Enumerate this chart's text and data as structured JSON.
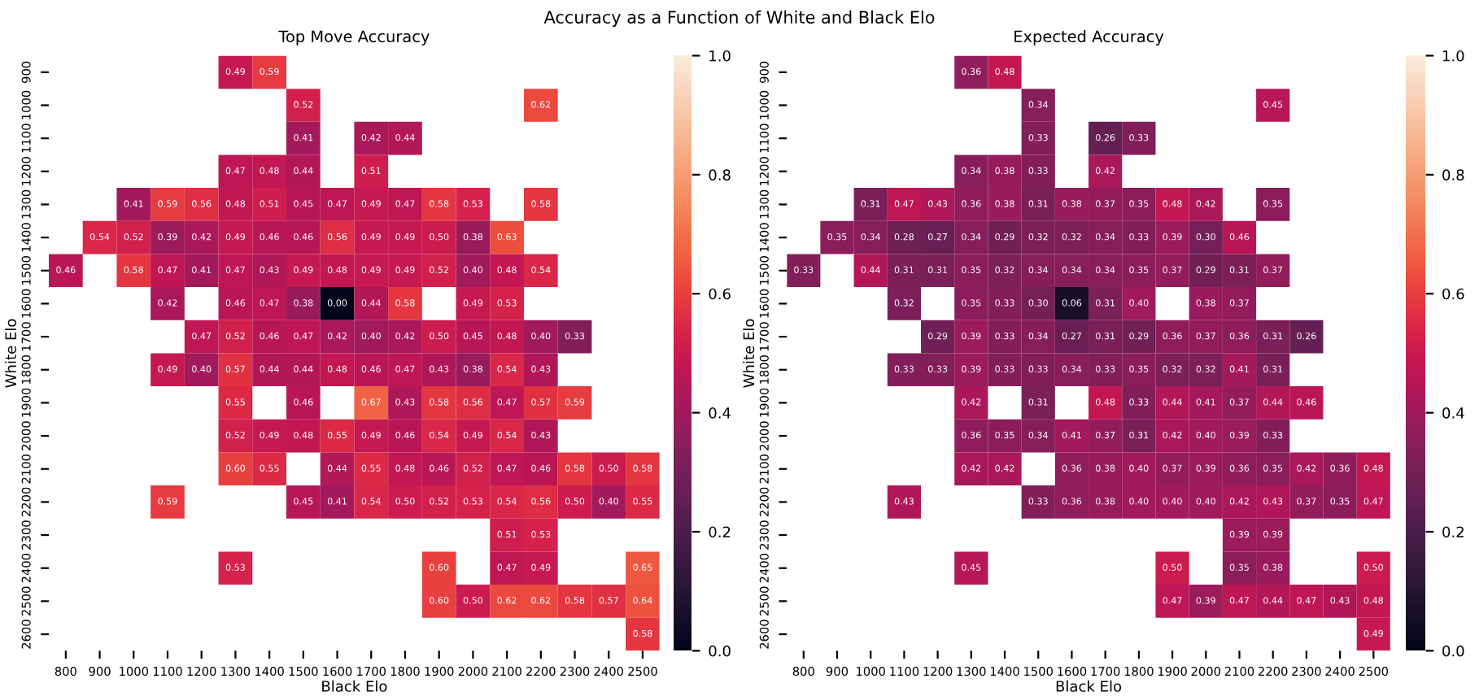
{
  "chart_data": [
    {
      "type": "heatmap",
      "title": "Top Move Accuracy",
      "subtitle": "Accuracy as a Function of White and Black Elo",
      "xlabel": "Black Elo",
      "ylabel": "White Elo",
      "categories": [
        "800",
        "900",
        "1000",
        "1100",
        "1200",
        "1300",
        "1400",
        "1500",
        "1600",
        "1700",
        "1800",
        "1900",
        "2000",
        "2100",
        "2200",
        "2300",
        "2400",
        "2500"
      ],
      "y_categories": [
        "900",
        "1000",
        "1100",
        "1200",
        "1300",
        "1400",
        "1500",
        "1600",
        "1700",
        "1800",
        "1900",
        "2000",
        "2100",
        "2200",
        "2300",
        "2400",
        "2500",
        "2600"
      ],
      "cells": [
        [
          null,
          null,
          null,
          null,
          null,
          0.49,
          0.59,
          null,
          null,
          null,
          null,
          null,
          null,
          null,
          null,
          null,
          null,
          null
        ],
        [
          null,
          null,
          null,
          null,
          null,
          null,
          null,
          0.52,
          null,
          null,
          null,
          null,
          null,
          null,
          0.62,
          null,
          null,
          null
        ],
        [
          null,
          null,
          null,
          null,
          null,
          null,
          null,
          0.41,
          null,
          0.42,
          0.44,
          null,
          null,
          null,
          null,
          null,
          null,
          null
        ],
        [
          null,
          null,
          null,
          null,
          null,
          0.47,
          0.48,
          0.44,
          null,
          0.51,
          null,
          null,
          null,
          null,
          null,
          null,
          null,
          null
        ],
        [
          null,
          null,
          0.41,
          0.59,
          0.56,
          0.48,
          0.51,
          0.45,
          0.47,
          0.49,
          0.47,
          0.58,
          0.53,
          null,
          0.58,
          null,
          null,
          null
        ],
        [
          null,
          0.54,
          0.52,
          0.39,
          0.42,
          0.49,
          0.46,
          0.46,
          0.56,
          0.49,
          0.49,
          0.5,
          0.38,
          0.63,
          null,
          null,
          null,
          null
        ],
        [
          0.46,
          null,
          0.58,
          0.47,
          0.41,
          0.47,
          0.43,
          0.49,
          0.48,
          0.49,
          0.49,
          0.52,
          0.4,
          0.48,
          0.54,
          null,
          null,
          null
        ],
        [
          null,
          null,
          null,
          0.42,
          null,
          0.46,
          0.47,
          0.38,
          0.0,
          0.44,
          0.58,
          null,
          0.49,
          0.53,
          null,
          null,
          null,
          null
        ],
        [
          null,
          null,
          null,
          null,
          0.47,
          0.52,
          0.46,
          0.47,
          0.42,
          0.4,
          0.42,
          0.5,
          0.45,
          0.48,
          0.4,
          0.33,
          null,
          null
        ],
        [
          null,
          null,
          null,
          0.49,
          0.4,
          0.57,
          0.44,
          0.44,
          0.48,
          0.46,
          0.47,
          0.43,
          0.38,
          0.54,
          0.43,
          null,
          null,
          null
        ],
        [
          null,
          null,
          null,
          null,
          null,
          0.55,
          null,
          0.46,
          null,
          0.67,
          0.43,
          0.58,
          0.56,
          0.47,
          0.57,
          0.59,
          null,
          null
        ],
        [
          null,
          null,
          null,
          null,
          null,
          0.52,
          0.49,
          0.48,
          0.55,
          0.49,
          0.46,
          0.54,
          0.49,
          0.54,
          0.43,
          null,
          null,
          null
        ],
        [
          null,
          null,
          null,
          null,
          null,
          0.6,
          0.55,
          null,
          0.44,
          0.55,
          0.48,
          0.46,
          0.52,
          0.47,
          0.46,
          0.58,
          0.5,
          0.58
        ],
        [
          null,
          null,
          null,
          0.59,
          null,
          null,
          null,
          0.45,
          0.41,
          0.54,
          0.5,
          0.52,
          0.53,
          0.54,
          0.56,
          0.5,
          0.4,
          0.55
        ],
        [
          null,
          null,
          null,
          null,
          null,
          null,
          null,
          null,
          null,
          null,
          null,
          null,
          null,
          0.51,
          0.53,
          null,
          null,
          null
        ],
        [
          null,
          null,
          null,
          null,
          null,
          0.53,
          null,
          null,
          null,
          null,
          null,
          0.6,
          null,
          0.47,
          0.49,
          null,
          null,
          0.65
        ],
        [
          null,
          null,
          null,
          null,
          null,
          null,
          null,
          null,
          null,
          null,
          null,
          0.6,
          0.5,
          0.62,
          0.62,
          0.58,
          0.57,
          0.64
        ],
        [
          null,
          null,
          null,
          null,
          null,
          null,
          null,
          null,
          null,
          null,
          null,
          null,
          null,
          null,
          null,
          null,
          null,
          0.58
        ]
      ],
      "cell_labels": [
        [
          null,
          null,
          null,
          null,
          null,
          "0.49",
          "0.59",
          null,
          null,
          null,
          null,
          null,
          null,
          null,
          null,
          null,
          null,
          null
        ],
        [
          null,
          null,
          null,
          null,
          null,
          null,
          null,
          "0.52",
          null,
          null,
          null,
          null,
          null,
          null,
          "0.62",
          null,
          null,
          null
        ],
        [
          null,
          null,
          null,
          null,
          null,
          null,
          null,
          "0.41",
          null,
          "0.42",
          "0.44",
          null,
          null,
          null,
          null,
          null,
          null,
          null
        ],
        [
          null,
          null,
          null,
          null,
          null,
          "0.47",
          "0.48",
          "0.44",
          null,
          "0.51",
          null,
          null,
          null,
          null,
          null,
          null,
          null,
          null
        ],
        [
          null,
          null,
          "0.41",
          "0.59",
          "0.56",
          "0.48",
          "0.51",
          "0.45",
          "0.47",
          "0.49",
          "0.47",
          "0.58",
          "0.53",
          null,
          "0.58",
          null,
          null,
          null
        ],
        [
          null,
          "0.54",
          "0.52",
          "0.39",
          "0.42",
          "0.49",
          "0.46",
          "0.46",
          "0.56",
          "0.49",
          "0.49",
          "0.50",
          "0.38",
          "0.63",
          null,
          null,
          null,
          null
        ],
        [
          "0.46",
          null,
          "0.58",
          "0.47",
          "0.41",
          "0.47",
          "0.43",
          "0.49",
          "0.48",
          "0.49",
          "0.49",
          "0.52",
          "0.40",
          "0.48",
          "0.54",
          null,
          null,
          null
        ],
        [
          null,
          null,
          null,
          "0.42",
          null,
          "0.46",
          "0.47",
          "0.38",
          "0.00",
          "0.44",
          "0.58",
          null,
          "0.49",
          "0.53",
          null,
          null,
          null,
          null
        ],
        [
          null,
          null,
          null,
          null,
          "0.47",
          "0.52",
          "0.46",
          "0.47",
          "0.42",
          "0.40",
          "0.42",
          "0.50",
          "0.45",
          "0.48",
          "0.40",
          "0.33",
          null,
          null
        ],
        [
          null,
          null,
          null,
          "0.49",
          "0.40",
          "0.57",
          "0.44",
          "0.44",
          "0.48",
          "0.46",
          "0.47",
          "0.43",
          "0.38",
          "0.54",
          "0.43",
          null,
          null,
          null
        ],
        [
          null,
          null,
          null,
          null,
          null,
          "0.55",
          null,
          "0.46",
          null,
          "0.67",
          "0.43",
          "0.58",
          "0.56",
          "0.47",
          "0.57",
          "0.59",
          null,
          null
        ],
        [
          null,
          null,
          null,
          null,
          null,
          "0.52",
          "0.49",
          "0.48",
          "0.55",
          "0.49",
          "0.46",
          "0.54",
          "0.49",
          "0.54",
          "0.43",
          null,
          null,
          null
        ],
        [
          null,
          null,
          null,
          null,
          null,
          "0.60",
          "0.55",
          null,
          "0.44",
          "0.55",
          "0.48",
          "0.46",
          "0.52",
          "0.47",
          "0.46",
          "0.58",
          "0.50",
          "0.58"
        ],
        [
          null,
          null,
          null,
          "0.59",
          null,
          null,
          null,
          "0.45",
          "0.41",
          "0.54",
          "0.50",
          "0.52",
          "0.53",
          "0.54",
          "0.56",
          "0.50",
          "0.40",
          "0.55"
        ],
        [
          null,
          null,
          null,
          null,
          null,
          null,
          null,
          null,
          null,
          null,
          null,
          null,
          null,
          "0.51",
          "0.53",
          null,
          null,
          null
        ],
        [
          null,
          null,
          null,
          null,
          null,
          "0.53",
          null,
          null,
          null,
          null,
          null,
          "0.60",
          null,
          "0.47",
          "0.49",
          null,
          null,
          "0.65"
        ],
        [
          null,
          null,
          null,
          null,
          null,
          null,
          null,
          null,
          null,
          null,
          null,
          "0.60",
          "0.50",
          "0.62",
          "0.62",
          "0.58",
          "0.57",
          "0.64"
        ],
        [
          null,
          null,
          null,
          null,
          null,
          null,
          null,
          null,
          null,
          null,
          null,
          null,
          null,
          null,
          null,
          null,
          null,
          "0.58"
        ]
      ],
      "clim": [
        0,
        1
      ],
      "cticks": [
        {
          "value": 0,
          "label": "0.0"
        },
        {
          "value": 0.2,
          "label": "0.2"
        },
        {
          "value": 0.4,
          "label": "0.4"
        },
        {
          "value": 0.6,
          "label": "0.6"
        },
        {
          "value": 0.8,
          "label": "0.8"
        },
        {
          "value": 1,
          "label": "1.0"
        }
      ]
    },
    {
      "type": "heatmap",
      "title": "Expected Accuracy",
      "xlabel": "Black Elo",
      "ylabel": "White Elo",
      "categories": [
        "800",
        "900",
        "1000",
        "1100",
        "1200",
        "1300",
        "1400",
        "1500",
        "1600",
        "1700",
        "1800",
        "1900",
        "2000",
        "2100",
        "2200",
        "2300",
        "2400",
        "2500"
      ],
      "y_categories": [
        "900",
        "1000",
        "1100",
        "1200",
        "1300",
        "1400",
        "1500",
        "1600",
        "1700",
        "1800",
        "1900",
        "2000",
        "2100",
        "2200",
        "2300",
        "2400",
        "2500",
        "2600"
      ],
      "cells": [
        [
          null,
          null,
          null,
          null,
          null,
          0.36,
          0.48,
          null,
          null,
          null,
          null,
          null,
          null,
          null,
          null,
          null,
          null,
          null
        ],
        [
          null,
          null,
          null,
          null,
          null,
          null,
          null,
          0.34,
          null,
          null,
          null,
          null,
          null,
          null,
          0.45,
          null,
          null,
          null
        ],
        [
          null,
          null,
          null,
          null,
          null,
          null,
          null,
          0.33,
          null,
          0.26,
          0.33,
          null,
          null,
          null,
          null,
          null,
          null,
          null
        ],
        [
          null,
          null,
          null,
          null,
          null,
          0.34,
          0.38,
          0.33,
          null,
          0.42,
          null,
          null,
          null,
          null,
          null,
          null,
          null,
          null
        ],
        [
          null,
          null,
          0.31,
          0.47,
          0.43,
          0.36,
          0.38,
          0.31,
          0.38,
          0.37,
          0.35,
          0.48,
          0.42,
          null,
          0.35,
          null,
          null,
          null
        ],
        [
          null,
          0.35,
          0.34,
          0.28,
          0.27,
          0.34,
          0.29,
          0.32,
          0.32,
          0.34,
          0.33,
          0.39,
          0.3,
          0.46,
          null,
          null,
          null,
          null
        ],
        [
          0.33,
          null,
          0.44,
          0.31,
          0.31,
          0.35,
          0.32,
          0.34,
          0.34,
          0.34,
          0.35,
          0.37,
          0.29,
          0.31,
          0.37,
          null,
          null,
          null
        ],
        [
          null,
          null,
          null,
          0.32,
          null,
          0.35,
          0.33,
          0.3,
          0.06,
          0.31,
          0.4,
          null,
          0.38,
          0.37,
          null,
          null,
          null,
          null
        ],
        [
          null,
          null,
          null,
          null,
          0.29,
          0.39,
          0.33,
          0.34,
          0.27,
          0.31,
          0.29,
          0.36,
          0.37,
          0.36,
          0.31,
          0.26,
          null,
          null
        ],
        [
          null,
          null,
          null,
          0.33,
          0.33,
          0.39,
          0.33,
          0.33,
          0.34,
          0.33,
          0.35,
          0.32,
          0.32,
          0.41,
          0.31,
          null,
          null,
          null
        ],
        [
          null,
          null,
          null,
          null,
          null,
          0.42,
          null,
          0.31,
          null,
          0.48,
          0.33,
          0.44,
          0.41,
          0.37,
          0.44,
          0.46,
          null,
          null
        ],
        [
          null,
          null,
          null,
          null,
          null,
          0.36,
          0.35,
          0.34,
          0.41,
          0.37,
          0.31,
          0.42,
          0.4,
          0.39,
          0.33,
          null,
          null,
          null
        ],
        [
          null,
          null,
          null,
          null,
          null,
          0.42,
          0.42,
          null,
          0.36,
          0.38,
          0.4,
          0.37,
          0.39,
          0.36,
          0.35,
          0.42,
          0.36,
          0.48
        ],
        [
          null,
          null,
          null,
          0.43,
          null,
          null,
          null,
          0.33,
          0.36,
          0.38,
          0.4,
          0.4,
          0.4,
          0.42,
          0.43,
          0.37,
          0.35,
          0.47
        ],
        [
          null,
          null,
          null,
          null,
          null,
          null,
          null,
          null,
          null,
          null,
          null,
          null,
          null,
          0.39,
          0.39,
          null,
          null,
          null
        ],
        [
          null,
          null,
          null,
          null,
          null,
          0.45,
          null,
          null,
          null,
          null,
          null,
          0.5,
          null,
          0.35,
          0.38,
          null,
          null,
          0.5
        ],
        [
          null,
          null,
          null,
          null,
          null,
          null,
          null,
          null,
          null,
          null,
          null,
          0.47,
          0.39,
          0.47,
          0.44,
          0.47,
          0.43,
          0.48
        ],
        [
          null,
          null,
          null,
          null,
          null,
          null,
          null,
          null,
          null,
          null,
          null,
          null,
          null,
          null,
          null,
          null,
          null,
          0.49
        ]
      ],
      "cell_labels": [
        [
          null,
          null,
          null,
          null,
          null,
          "0.36",
          "0.48",
          null,
          null,
          null,
          null,
          null,
          null,
          null,
          null,
          null,
          null,
          null
        ],
        [
          null,
          null,
          null,
          null,
          null,
          null,
          null,
          "0.34",
          null,
          null,
          null,
          null,
          null,
          null,
          "0.45",
          null,
          null,
          null
        ],
        [
          null,
          null,
          null,
          null,
          null,
          null,
          null,
          "0.33",
          null,
          "0.26",
          "0.33",
          null,
          null,
          null,
          null,
          null,
          null,
          null
        ],
        [
          null,
          null,
          null,
          null,
          null,
          "0.34",
          "0.38",
          "0.33",
          null,
          "0.42",
          null,
          null,
          null,
          null,
          null,
          null,
          null,
          null
        ],
        [
          null,
          null,
          "0.31",
          "0.47",
          "0.43",
          "0.36",
          "0.38",
          "0.31",
          "0.38",
          "0.37",
          "0.35",
          "0.48",
          "0.42",
          null,
          "0.35",
          null,
          null,
          null
        ],
        [
          null,
          "0.35",
          "0.34",
          "0.28",
          "0.27",
          "0.34",
          "0.29",
          "0.32",
          "0.32",
          "0.34",
          "0.33",
          "0.39",
          "0.30",
          "0.46",
          null,
          null,
          null,
          null
        ],
        [
          "0.33",
          null,
          "0.44",
          "0.31",
          "0.31",
          "0.35",
          "0.32",
          "0.34",
          "0.34",
          "0.34",
          "0.35",
          "0.37",
          "0.29",
          "0.31",
          "0.37",
          null,
          null,
          null
        ],
        [
          null,
          null,
          null,
          "0.32",
          null,
          "0.35",
          "0.33",
          "0.30",
          "0.06",
          "0.31",
          "0.40",
          null,
          "0.38",
          "0.37",
          null,
          null,
          null,
          null
        ],
        [
          null,
          null,
          null,
          null,
          "0.29",
          "0.39",
          "0.33",
          "0.34",
          "0.27",
          "0.31",
          "0.29",
          "0.36",
          "0.37",
          "0.36",
          "0.31",
          "0.26",
          null,
          null
        ],
        [
          null,
          null,
          null,
          "0.33",
          "0.33",
          "0.39",
          "0.33",
          "0.33",
          "0.34",
          "0.33",
          "0.35",
          "0.32",
          "0.32",
          "0.41",
          "0.31",
          null,
          null,
          null
        ],
        [
          null,
          null,
          null,
          null,
          null,
          "0.42",
          null,
          "0.31",
          null,
          "0.48",
          "0.33",
          "0.44",
          "0.41",
          "0.37",
          "0.44",
          "0.46",
          null,
          null
        ],
        [
          null,
          null,
          null,
          null,
          null,
          "0.36",
          "0.35",
          "0.34",
          "0.41",
          "0.37",
          "0.31",
          "0.42",
          "0.40",
          "0.39",
          "0.33",
          null,
          null,
          null
        ],
        [
          null,
          null,
          null,
          null,
          null,
          "0.42",
          "0.42",
          null,
          "0.36",
          "0.38",
          "0.40",
          "0.37",
          "0.39",
          "0.36",
          "0.35",
          "0.42",
          "0.36",
          "0.48"
        ],
        [
          null,
          null,
          null,
          "0.43",
          null,
          null,
          null,
          "0.33",
          "0.36",
          "0.38",
          "0.40",
          "0.40",
          "0.40",
          "0.42",
          "0.43",
          "0.37",
          "0.35",
          "0.47"
        ],
        [
          null,
          null,
          null,
          null,
          null,
          null,
          null,
          null,
          null,
          null,
          null,
          null,
          null,
          "0.39",
          "0.39",
          null,
          null,
          null
        ],
        [
          null,
          null,
          null,
          null,
          null,
          "0.45",
          null,
          null,
          null,
          null,
          null,
          "0.50",
          null,
          "0.35",
          "0.38",
          null,
          null,
          "0.50"
        ],
        [
          null,
          null,
          null,
          null,
          null,
          null,
          null,
          null,
          null,
          null,
          null,
          "0.47",
          "0.39",
          "0.47",
          "0.44",
          "0.47",
          "0.43",
          "0.48"
        ],
        [
          null,
          null,
          null,
          null,
          null,
          null,
          null,
          null,
          null,
          null,
          null,
          null,
          null,
          null,
          null,
          null,
          null,
          "0.49"
        ]
      ],
      "clim": [
        0,
        1
      ],
      "cticks": [
        {
          "value": 0,
          "label": "0.0"
        },
        {
          "value": 0.2,
          "label": "0.2"
        },
        {
          "value": 0.4,
          "label": "0.4"
        },
        {
          "value": 0.6,
          "label": "0.6"
        },
        {
          "value": 0.8,
          "label": "0.8"
        },
        {
          "value": 1,
          "label": "1.0"
        }
      ]
    }
  ]
}
